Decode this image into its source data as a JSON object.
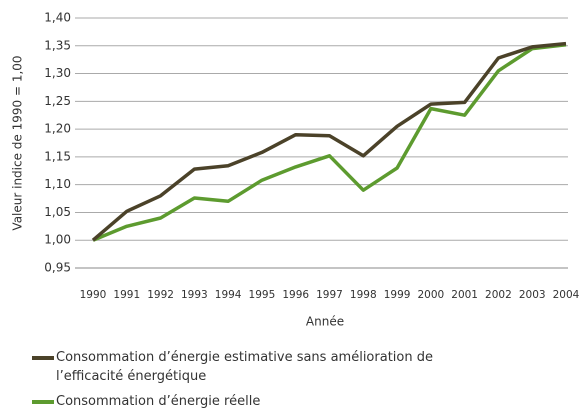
{
  "chart_data": {
    "type": "line",
    "y_label": "Valeur indice de 1990 = 1,00",
    "x_label": "Année",
    "categories": [
      "1990",
      "1991",
      "1992",
      "1993",
      "1994",
      "1995",
      "1996",
      "1997",
      "1998",
      "1999",
      "2000",
      "2001",
      "2002",
      "2003",
      "2004"
    ],
    "series": [
      {
        "name": "Consommation d’énergie estimative sans amélioration de l’efficacité énergétique",
        "color": "#4b4229",
        "values": [
          1.0,
          1.052,
          1.08,
          1.128,
          1.134,
          1.158,
          1.19,
          1.188,
          1.152,
          1.205,
          1.245,
          1.248,
          1.328,
          1.348,
          1.354
        ]
      },
      {
        "name": "Consommation d’énergie réelle",
        "color": "#5d9b2f",
        "values": [
          1.0,
          1.025,
          1.04,
          1.076,
          1.07,
          1.108,
          1.132,
          1.152,
          1.09,
          1.13,
          1.237,
          1.225,
          1.305,
          1.345,
          1.352
        ]
      }
    ],
    "ylim": [
      0.95,
      1.4
    ],
    "yticks": [
      {
        "value": 0.95,
        "label": "0,95"
      },
      {
        "value": 1.0,
        "label": "1,00"
      },
      {
        "value": 1.05,
        "label": "1,05"
      },
      {
        "value": 1.1,
        "label": "1,10"
      },
      {
        "value": 1.15,
        "label": "1,15"
      },
      {
        "value": 1.2,
        "label": "1,20"
      },
      {
        "value": 1.25,
        "label": "1,25"
      },
      {
        "value": 1.3,
        "label": "1,30"
      },
      {
        "value": 1.35,
        "label": "1,35"
      },
      {
        "value": 1.4,
        "label": "1,40"
      }
    ],
    "grid": true,
    "legend": "bottom"
  }
}
